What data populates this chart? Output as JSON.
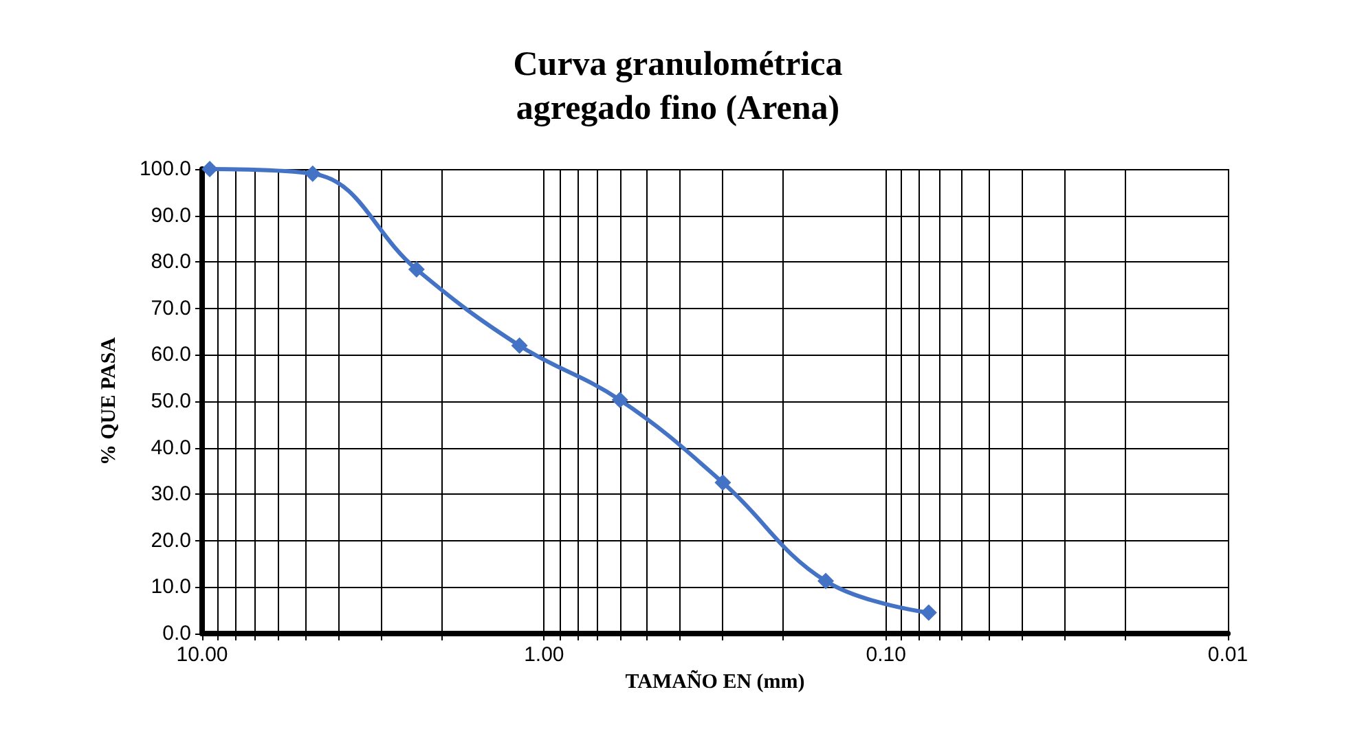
{
  "chart_data": {
    "type": "line",
    "title": "Curva granulométrica\nagregado fino (Arena)",
    "xlabel": "TAMAÑO EN (mm)",
    "ylabel": "% QUE PASA",
    "x": [
      9.5,
      4.75,
      2.36,
      1.18,
      0.6,
      0.3,
      0.15,
      0.075
    ],
    "series": [
      {
        "color": "#4472c4",
        "values": [
          100.0,
          99.0,
          78.4,
          62.0,
          50.3,
          32.5,
          11.3,
          4.5
        ]
      }
    ],
    "marker": "diamond",
    "log": "x",
    "grid": true,
    "xlim": [
      10,
      0.01
    ],
    "xticks": [
      {
        "value": 10,
        "label": "10.00"
      },
      {
        "value": 9,
        "label": null
      },
      {
        "value": 8,
        "label": null
      },
      {
        "value": 7,
        "label": null
      },
      {
        "value": 6,
        "label": null
      },
      {
        "value": 5,
        "label": null
      },
      {
        "value": 4,
        "label": null
      },
      {
        "value": 3,
        "label": null
      },
      {
        "value": 2,
        "label": null
      },
      {
        "value": 1,
        "label": "1.00"
      },
      {
        "value": 0.9,
        "label": null
      },
      {
        "value": 0.8,
        "label": null
      },
      {
        "value": 0.7,
        "label": null
      },
      {
        "value": 0.6,
        "label": null
      },
      {
        "value": 0.5,
        "label": null
      },
      {
        "value": 0.4,
        "label": null
      },
      {
        "value": 0.3,
        "label": null
      },
      {
        "value": 0.2,
        "label": null
      },
      {
        "value": 0.1,
        "label": "0.10"
      },
      {
        "value": 0.09,
        "label": null
      },
      {
        "value": 0.08,
        "label": null
      },
      {
        "value": 0.07,
        "label": null
      },
      {
        "value": 0.06,
        "label": null
      },
      {
        "value": 0.05,
        "label": null
      },
      {
        "value": 0.04,
        "label": null
      },
      {
        "value": 0.03,
        "label": null
      },
      {
        "value": 0.02,
        "label": null
      },
      {
        "value": 0.01,
        "label": "0.01"
      }
    ],
    "ylim": [
      0,
      100
    ],
    "yticks": [
      {
        "value": 0,
        "label": "0.0"
      },
      {
        "value": 10,
        "label": "10.0"
      },
      {
        "value": 20,
        "label": "20.0"
      },
      {
        "value": 30,
        "label": "30.0"
      },
      {
        "value": 40,
        "label": "40.0"
      },
      {
        "value": 50,
        "label": "50.0"
      },
      {
        "value": 60,
        "label": "60.0"
      },
      {
        "value": 70,
        "label": "70.0"
      },
      {
        "value": 80,
        "label": "80.0"
      },
      {
        "value": 90,
        "label": "90.0"
      },
      {
        "value": 100,
        "label": "100.0"
      }
    ]
  }
}
